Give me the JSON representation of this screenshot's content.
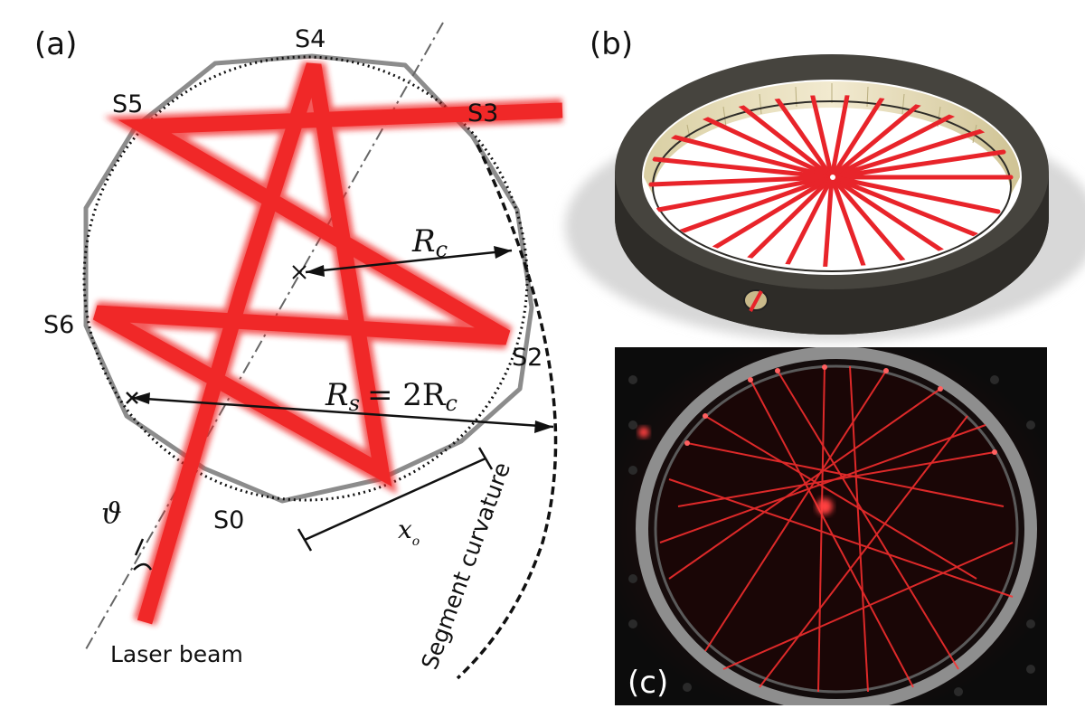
{
  "panels": {
    "a": "(a)",
    "b": "(b)",
    "c": "(c)"
  },
  "segments": {
    "s0": "S0",
    "s2": "S2",
    "s3": "S3",
    "s4": "S4",
    "s5": "S5",
    "s6": "S6"
  },
  "annotations": {
    "rc_symbol": "R",
    "rc_subscript": "c",
    "rs_symbol": "R",
    "rs_subscript": "s",
    "rs_equals": "= 2R",
    "rs_equals_subscript": "c",
    "x0_symbol": "x",
    "x0_subscript": "o",
    "theta": "ϑ",
    "laser_beam": "Laser beam",
    "segment_curvature": "Segment curvature"
  },
  "colors": {
    "beam": "#f02828",
    "cell_wall": "#8c8c8c",
    "ring_body": "#3b3934",
    "photo_background": "#141414"
  }
}
